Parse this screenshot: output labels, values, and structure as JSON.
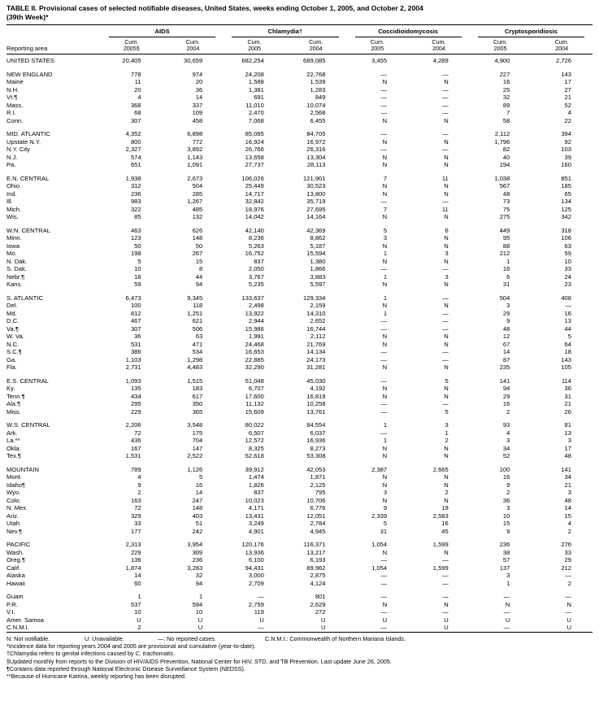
{
  "title": {
    "line1": "TABLE II. Provisional cases of selected notifiable diseases, United States, weeks ending October 1, 2005, and October 2, 2004",
    "line2": "(39th Week)*"
  },
  "table": {
    "area_header": "Reporting area",
    "groups": [
      {
        "name": "AIDS",
        "cols": [
          {
            "l1": "Cum.",
            "l2": "2005§"
          },
          {
            "l1": "Cum.",
            "l2": "2004"
          }
        ]
      },
      {
        "name": "Chlamydia†",
        "cols": [
          {
            "l1": "Cum.",
            "l2": "2005"
          },
          {
            "l1": "Cum.",
            "l2": "2004"
          }
        ]
      },
      {
        "name": "Coccidioidomycosis",
        "cols": [
          {
            "l1": "Cum.",
            "l2": "2005"
          },
          {
            "l1": "Cum.",
            "l2": "2004"
          }
        ]
      },
      {
        "name": "Cryptosporidiosis",
        "cols": [
          {
            "l1": "Cum.",
            "l2": "2005"
          },
          {
            "l1": "Cum.",
            "l2": "2004"
          }
        ]
      }
    ],
    "sections": [
      {
        "rows": [
          {
            "area": "UNITED STATES",
            "v": [
              "20,405",
              "30,659",
              "682,254",
              "689,085",
              "3,455",
              "4,289",
              "4,900",
              "2,726"
            ]
          }
        ]
      },
      {
        "rows": [
          {
            "area": "NEW ENGLAND",
            "v": [
              "778",
              "974",
              "24,208",
              "22,768",
              "—",
              "—",
              "227",
              "143"
            ]
          },
          {
            "area": "Maine",
            "v": [
              "11",
              "20",
              "1,588",
              "1,539",
              "N",
              "N",
              "16",
              "17"
            ]
          },
          {
            "area": "N.H.",
            "v": [
              "20",
              "36",
              "1,381",
              "1,283",
              "—",
              "—",
              "25",
              "27"
            ]
          },
          {
            "area": "Vt.¶",
            "v": [
              "4",
              "14",
              "691",
              "849",
              "—",
              "—",
              "32",
              "21"
            ]
          },
          {
            "area": "Mass.",
            "v": [
              "368",
              "337",
              "11,010",
              "10,074",
              "—",
              "—",
              "89",
              "52"
            ]
          },
          {
            "area": "R.I.",
            "v": [
              "68",
              "109",
              "2,470",
              "2,568",
              "—",
              "—",
              "7",
              "4"
            ]
          },
          {
            "area": "Conn.",
            "v": [
              "307",
              "458",
              "7,068",
              "6,455",
              "N",
              "N",
              "58",
              "22"
            ]
          }
        ]
      },
      {
        "rows": [
          {
            "area": "MID. ATLANTIC",
            "v": [
              "4,352",
              "6,898",
              "85,085",
              "84,705",
              "—",
              "—",
              "2,112",
              "394"
            ]
          },
          {
            "area": "Upstate N.Y.",
            "v": [
              "800",
              "772",
              "16,924",
              "16,972",
              "N",
              "N",
              "1,796",
              "92"
            ]
          },
          {
            "area": "N.Y. City",
            "v": [
              "2,327",
              "3,892",
              "26,766",
              "26,316",
              "—",
              "—",
              "82",
              "103"
            ]
          },
          {
            "area": "N.J.",
            "v": [
              "574",
              "1,143",
              "13,658",
              "13,304",
              "N",
              "N",
              "40",
              "39"
            ]
          },
          {
            "area": "Pa.",
            "v": [
              "651",
              "1,091",
              "27,737",
              "28,113",
              "N",
              "N",
              "194",
              "160"
            ]
          }
        ]
      },
      {
        "rows": [
          {
            "area": "E.N. CENTRAL",
            "v": [
              "1,938",
              "2,673",
              "106,026",
              "121,901",
              "7",
              "11",
              "1,038",
              "851"
            ]
          },
          {
            "area": "Ohio",
            "v": [
              "312",
              "504",
              "25,449",
              "30,523",
              "N",
              "N",
              "567",
              "185"
            ]
          },
          {
            "area": "Ind.",
            "v": [
              "236",
              "285",
              "14,717",
              "13,800",
              "N",
              "N",
              "48",
              "65"
            ]
          },
          {
            "area": "Ill.",
            "v": [
              "983",
              "1,267",
              "32,842",
              "35,719",
              "—",
              "—",
              "73",
              "134"
            ]
          },
          {
            "area": "Mich.",
            "v": [
              "322",
              "485",
              "18,976",
              "27,695",
              "7",
              "11",
              "75",
              "125"
            ]
          },
          {
            "area": "Wis.",
            "v": [
              "85",
              "132",
              "14,042",
              "14,164",
              "N",
              "N",
              "275",
              "342"
            ]
          }
        ]
      },
      {
        "rows": [
          {
            "area": "W.N. CENTRAL",
            "v": [
              "463",
              "626",
              "42,140",
              "42,369",
              "5",
              "6",
              "449",
              "318"
            ]
          },
          {
            "area": "Minn.",
            "v": [
              "123",
              "148",
              "8,236",
              "8,862",
              "3",
              "N",
              "95",
              "106"
            ]
          },
          {
            "area": "Iowa",
            "v": [
              "50",
              "50",
              "5,263",
              "5,187",
              "N",
              "N",
              "88",
              "63"
            ]
          },
          {
            "area": "Mo.",
            "v": [
              "198",
              "267",
              "16,752",
              "15,594",
              "1",
              "3",
              "212",
              "59"
            ]
          },
          {
            "area": "N. Dak.",
            "v": [
              "5",
              "15",
              "837",
              "1,380",
              "N",
              "N",
              "1",
              "10"
            ]
          },
          {
            "area": "S. Dak.",
            "v": [
              "10",
              "8",
              "2,050",
              "1,866",
              "—",
              "—",
              "16",
              "33"
            ]
          },
          {
            "area": "Nebr.¶",
            "v": [
              "18",
              "44",
              "3,767",
              "3,883",
              "1",
              "3",
              "6",
              "24"
            ]
          },
          {
            "area": "Kans.",
            "v": [
              "59",
              "94",
              "5,235",
              "5,597",
              "N",
              "N",
              "31",
              "23"
            ]
          }
        ]
      },
      {
        "rows": [
          {
            "area": "S. ATLANTIC",
            "v": [
              "6,473",
              "9,345",
              "133,637",
              "129,334",
              "1",
              "—",
              "504",
              "408"
            ]
          },
          {
            "area": "Del.",
            "v": [
              "100",
              "118",
              "2,498",
              "2,159",
              "N",
              "N",
              "3",
              "—"
            ]
          },
          {
            "area": "Md.",
            "v": [
              "812",
              "1,251",
              "13,922",
              "14,310",
              "1",
              "—",
              "29",
              "16"
            ]
          },
          {
            "area": "D.C.",
            "v": [
              "467",
              "621",
              "2,944",
              "2,652",
              "—",
              "—",
              "9",
              "13"
            ]
          },
          {
            "area": "Va.¶",
            "v": [
              "307",
              "506",
              "15,986",
              "16,744",
              "—",
              "—",
              "48",
              "44"
            ]
          },
          {
            "area": "W. Va.",
            "v": [
              "36",
              "63",
              "1,991",
              "2,112",
              "N",
              "N",
              "12",
              "5"
            ]
          },
          {
            "area": "N.C.",
            "v": [
              "531",
              "471",
              "24,468",
              "21,769",
              "N",
              "N",
              "67",
              "64"
            ]
          },
          {
            "area": "S.C.¶",
            "v": [
              "386",
              "534",
              "16,653",
              "14,134",
              "—",
              "—",
              "14",
              "18"
            ]
          },
          {
            "area": "Ga.",
            "v": [
              "1,103",
              "1,298",
              "22,885",
              "24,173",
              "—",
              "—",
              "87",
              "143"
            ]
          },
          {
            "area": "Fla.",
            "v": [
              "2,731",
              "4,483",
              "32,290",
              "31,281",
              "N",
              "N",
              "235",
              "105"
            ]
          }
        ]
      },
      {
        "rows": [
          {
            "area": "E.S. CENTRAL",
            "v": [
              "1,093",
              "1,515",
              "51,048",
              "45,030",
              "—",
              "5",
              "141",
              "114"
            ]
          },
          {
            "area": "Ky.",
            "v": [
              "135",
              "183",
              "6,707",
              "4,192",
              "N",
              "N",
              "94",
              "36"
            ]
          },
          {
            "area": "Tenn.¶",
            "v": [
              "434",
              "617",
              "17,600",
              "16,819",
              "N",
              "N",
              "29",
              "31"
            ]
          },
          {
            "area": "Ala.¶",
            "v": [
              "295",
              "350",
              "11,132",
              "10,258",
              "—",
              "—",
              "16",
              "21"
            ]
          },
          {
            "area": "Miss.",
            "v": [
              "229",
              "365",
              "15,609",
              "13,761",
              "—",
              "5",
              "2",
              "26"
            ]
          }
        ]
      },
      {
        "rows": [
          {
            "area": "W.S. CENTRAL",
            "v": [
              "2,206",
              "3,548",
              "80,022",
              "84,554",
              "1",
              "3",
              "93",
              "81"
            ]
          },
          {
            "area": "Ark.",
            "v": [
              "72",
              "175",
              "6,507",
              "6,037",
              "—",
              "1",
              "4",
              "13"
            ]
          },
          {
            "area": "La.**",
            "v": [
              "436",
              "704",
              "12,572",
              "16,936",
              "1",
              "2",
              "3",
              "3"
            ]
          },
          {
            "area": "Okla.",
            "v": [
              "167",
              "147",
              "8,325",
              "8,273",
              "N",
              "N",
              "34",
              "17"
            ]
          },
          {
            "area": "Tex.¶",
            "v": [
              "1,531",
              "2,522",
              "52,618",
              "53,308",
              "N",
              "N",
              "52",
              "48"
            ]
          }
        ]
      },
      {
        "rows": [
          {
            "area": "MOUNTAIN",
            "v": [
              "789",
              "1,126",
              "39,912",
              "42,053",
              "2,387",
              "2,665",
              "100",
              "141"
            ]
          },
          {
            "area": "Mont.",
            "v": [
              "4",
              "5",
              "1,474",
              "1,871",
              "N",
              "N",
              "16",
              "34"
            ]
          },
          {
            "area": "Idaho¶",
            "v": [
              "9",
              "16",
              "1,826",
              "2,125",
              "N",
              "N",
              "9",
              "21"
            ]
          },
          {
            "area": "Wyo.",
            "v": [
              "2",
              "14",
              "837",
              "795",
              "3",
              "2",
              "2",
              "3"
            ]
          },
          {
            "area": "Colo.",
            "v": [
              "163",
              "247",
              "10,023",
              "10,706",
              "N",
              "N",
              "36",
              "48"
            ]
          },
          {
            "area": "N. Mex.",
            "v": [
              "72",
              "148",
              "4,171",
              "6,776",
              "9",
              "19",
              "3",
              "14"
            ]
          },
          {
            "area": "Ariz.",
            "v": [
              "329",
              "403",
              "13,431",
              "12,051",
              "2,339",
              "2,583",
              "10",
              "15"
            ]
          },
          {
            "area": "Utah",
            "v": [
              "33",
              "51",
              "3,249",
              "2,784",
              "5",
              "16",
              "15",
              "4"
            ]
          },
          {
            "area": "Nev.¶",
            "v": [
              "177",
              "242",
              "4,901",
              "4,945",
              "31",
              "45",
              "9",
              "2"
            ]
          }
        ]
      },
      {
        "rows": [
          {
            "area": "PACIFIC",
            "v": [
              "2,313",
              "3,954",
              "120,176",
              "116,371",
              "1,054",
              "1,599",
              "236",
              "276"
            ]
          },
          {
            "area": "Wash.",
            "v": [
              "229",
              "309",
              "13,936",
              "13,217",
              "N",
              "N",
              "38",
              "33"
            ]
          },
          {
            "area": "Oreg.¶",
            "v": [
              "136",
              "236",
              "6,100",
              "6,193",
              "—",
              "—",
              "57",
              "29"
            ]
          },
          {
            "area": "Calif.",
            "v": [
              "1,874",
              "3,283",
              "94,431",
              "89,962",
              "1,054",
              "1,599",
              "137",
              "212"
            ]
          },
          {
            "area": "Alaska",
            "v": [
              "14",
              "32",
              "3,000",
              "2,875",
              "—",
              "—",
              "3",
              "—"
            ]
          },
          {
            "area": "Hawaii",
            "v": [
              "60",
              "94",
              "2,709",
              "4,124",
              "—",
              "—",
              "1",
              "2"
            ]
          }
        ]
      },
      {
        "rows": [
          {
            "area": "Guam",
            "v": [
              "1",
              "1",
              "—",
              "801",
              "—",
              "—",
              "—",
              "—"
            ]
          },
          {
            "area": "P.R.",
            "v": [
              "537",
              "594",
              "2,759",
              "2,629",
              "N",
              "N",
              "N",
              "N"
            ]
          },
          {
            "area": "V.I.",
            "v": [
              "10",
              "10",
              "119",
              "272",
              "—",
              "—",
              "—",
              "—"
            ]
          },
          {
            "area": "Amer. Samoa",
            "v": [
              "U",
              "U",
              "U",
              "U",
              "U",
              "U",
              "U",
              "U"
            ]
          },
          {
            "area": "C.N.M.I.",
            "v": [
              "2",
              "U",
              "—",
              "U",
              "—",
              "U",
              "—",
              "U"
            ]
          }
        ]
      }
    ]
  },
  "legend": [
    "N: Not notifiable.",
    "U: Unavailable.",
    "—: No reported cases.",
    "C.N.M.I.: Commonwealth of Northern Mariana Islands."
  ],
  "footnotes": [
    {
      "marker": "*",
      "text": "Incidence data for reporting years 2004 and 2005 are provisional and cumulative (year-to-date)."
    },
    {
      "marker": "†",
      "pre": "Chlamydia refers to genital infections caused by ",
      "italic": "C. trachomatis",
      "post": "."
    },
    {
      "marker": "§",
      "text": "Updated monthly from reports to the Division of HIV/AIDS Prevention, National Center for HIV, STD, and TB Prevention. Last update June 26, 2005."
    },
    {
      "marker": "¶",
      "text": "Contains data reported through National Electronic Disease Surveillance System (NEDSS)."
    },
    {
      "marker": "**",
      "text": "Because of Hurricane Katrina, weekly reporting has been disrupted."
    }
  ]
}
